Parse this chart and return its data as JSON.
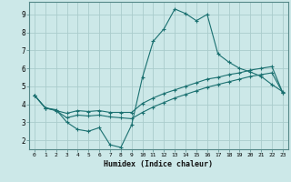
{
  "xlabel": "Humidex (Indice chaleur)",
  "bg_color": "#cce8e8",
  "grid_color": "#aacccc",
  "line_color": "#1a7070",
  "xlim": [
    -0.5,
    23.5
  ],
  "ylim": [
    1.5,
    9.7
  ],
  "yticks": [
    2,
    3,
    4,
    5,
    6,
    7,
    8,
    9
  ],
  "xticks": [
    0,
    1,
    2,
    3,
    4,
    5,
    6,
    7,
    8,
    9,
    10,
    11,
    12,
    13,
    14,
    15,
    16,
    17,
    18,
    19,
    20,
    21,
    22,
    23
  ],
  "line1_x": [
    0,
    1,
    2,
    3,
    4,
    5,
    6,
    7,
    8,
    9,
    10,
    11,
    12,
    13,
    14,
    15,
    16,
    17,
    18,
    19,
    20,
    21,
    22,
    23
  ],
  "line1_y": [
    4.5,
    3.8,
    3.7,
    3.0,
    2.6,
    2.5,
    2.7,
    1.75,
    1.6,
    2.85,
    5.5,
    7.5,
    8.2,
    9.3,
    9.05,
    8.65,
    9.0,
    6.8,
    6.35,
    6.0,
    5.8,
    5.55,
    5.1,
    4.7
  ],
  "line2_x": [
    0,
    1,
    2,
    3,
    4,
    5,
    6,
    7,
    8,
    9,
    10,
    11,
    12,
    13,
    14,
    15,
    16,
    17,
    18,
    19,
    20,
    21,
    22,
    23
  ],
  "line2_y": [
    4.5,
    3.8,
    3.65,
    3.25,
    3.4,
    3.35,
    3.4,
    3.3,
    3.25,
    3.2,
    3.55,
    3.85,
    4.1,
    4.35,
    4.55,
    4.75,
    4.95,
    5.1,
    5.25,
    5.4,
    5.55,
    5.65,
    5.75,
    4.65
  ],
  "line3_x": [
    0,
    1,
    2,
    3,
    4,
    5,
    6,
    7,
    8,
    9,
    10,
    11,
    12,
    13,
    14,
    15,
    16,
    17,
    18,
    19,
    20,
    21,
    22,
    23
  ],
  "line3_y": [
    4.5,
    3.8,
    3.65,
    3.5,
    3.65,
    3.6,
    3.65,
    3.55,
    3.55,
    3.55,
    4.05,
    4.35,
    4.6,
    4.8,
    5.0,
    5.2,
    5.4,
    5.5,
    5.65,
    5.75,
    5.9,
    6.0,
    6.1,
    4.65
  ]
}
